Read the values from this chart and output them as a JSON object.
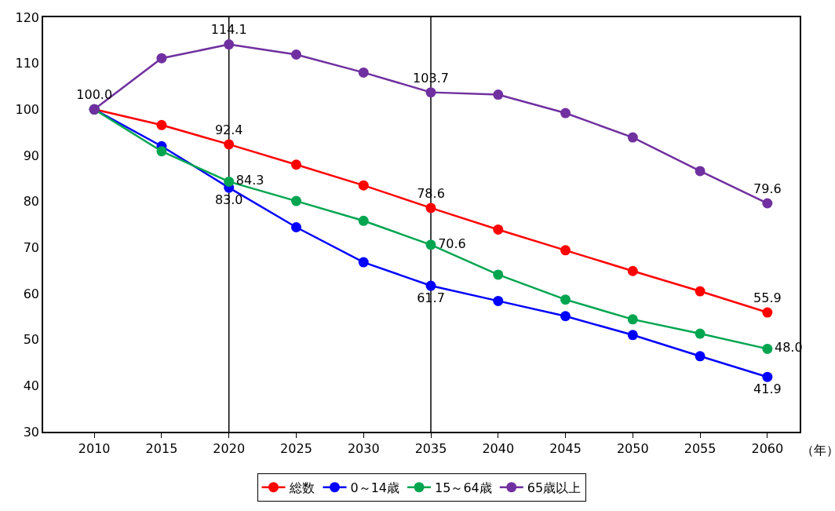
{
  "chart_data": {
    "type": "line",
    "xlabel": "（年）",
    "x": [
      2010,
      2015,
      2020,
      2025,
      2030,
      2035,
      2040,
      2045,
      2050,
      2055,
      2060
    ],
    "xlim": [
      2006.2,
      2062.4
    ],
    "xticks": [
      2010,
      2015,
      2020,
      2025,
      2030,
      2035,
      2040,
      2045,
      2050,
      2055,
      2060
    ],
    "ylim": [
      30,
      120
    ],
    "yticks": [
      30,
      40,
      50,
      60,
      70,
      80,
      90,
      100,
      110,
      120
    ],
    "grid": false,
    "legend": "bottom",
    "marker": "circle",
    "line_style": "solid",
    "ref_lines": [
      {
        "axis": "x",
        "value": 2020,
        "color": "#000000"
      },
      {
        "axis": "x",
        "value": 2035,
        "color": "#000000"
      }
    ],
    "series": [
      {
        "name": "総数",
        "color": "#ff0000",
        "values": [
          100.0,
          96.6,
          92.4,
          88.0,
          83.5,
          78.6,
          73.9,
          69.4,
          64.9,
          60.5,
          55.9
        ],
        "value_labels": [
          null,
          null,
          "92.4",
          null,
          null,
          "78.6",
          null,
          null,
          null,
          null,
          "55.9"
        ]
      },
      {
        "name": "0～14歳",
        "color": "#0000ff",
        "values": [
          100.0,
          92.0,
          83.0,
          74.4,
          66.8,
          61.7,
          58.4,
          55.1,
          51.0,
          46.4,
          41.9
        ],
        "value_labels": [
          null,
          null,
          "83.0",
          null,
          null,
          "61.7",
          null,
          null,
          null,
          null,
          "41.9"
        ]
      },
      {
        "name": "15～64歳",
        "color": "#00a550",
        "values": [
          100.0,
          90.9,
          84.3,
          80.1,
          75.8,
          70.6,
          64.1,
          58.7,
          54.4,
          51.3,
          48.0
        ],
        "value_labels": [
          null,
          null,
          "84.3",
          null,
          null,
          "70.6",
          null,
          null,
          null,
          null,
          "48.0"
        ]
      },
      {
        "name": "65歳以上",
        "color": "#7030a0",
        "values": [
          100.0,
          111.1,
          114.1,
          111.9,
          108.0,
          103.7,
          103.2,
          99.2,
          93.9,
          86.6,
          79.6
        ],
        "value_labels": [
          "100.0",
          null,
          "114.1",
          null,
          null,
          "103.7",
          null,
          null,
          null,
          null,
          "79.6"
        ]
      }
    ]
  }
}
